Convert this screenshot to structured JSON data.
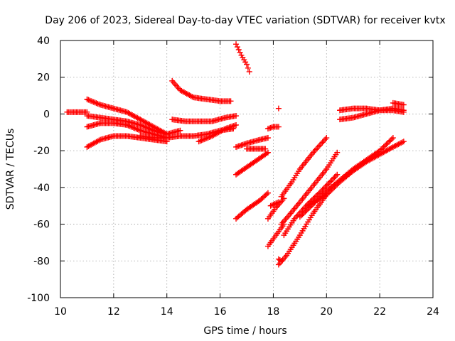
{
  "chart_data": {
    "type": "scatter",
    "title": "Day 206 of 2023, Sidereal Day-to-day VTEC variation (SDTVAR) for receiver kvtx",
    "xlabel": "GPS time / hours",
    "ylabel": "SDTVAR / TECUs",
    "xlim": [
      10,
      24
    ],
    "ylim": [
      -100,
      40
    ],
    "xticks": [
      "10",
      "12",
      "14",
      "16",
      "18",
      "20",
      "22",
      "24"
    ],
    "yticks": [
      "-100",
      "-80",
      "-60",
      "-40",
      "-20",
      "0",
      "20",
      "40"
    ],
    "grid": true,
    "marker": "plus",
    "color": "#ff0000",
    "series": [
      {
        "x": [
          10.25,
          10.6,
          11.0
        ],
        "y": [
          1,
          1,
          1
        ]
      },
      {
        "x": [
          11.0,
          11.5,
          12.0,
          12.5,
          13.0,
          13.5,
          14.0
        ],
        "y": [
          8,
          5,
          3,
          1,
          -3,
          -7,
          -11
        ]
      },
      {
        "x": [
          11.0,
          11.5,
          12.0,
          12.5,
          13.0,
          13.5,
          14.0,
          14.5
        ],
        "y": [
          -1,
          -2,
          -3,
          -4,
          -6,
          -9,
          -11,
          -9
        ]
      },
      {
        "x": [
          11.0,
          11.5,
          12.0,
          12.5,
          13.0,
          13.5,
          14.0
        ],
        "y": [
          -7,
          -5,
          -5,
          -6,
          -9,
          -11,
          -13
        ]
      },
      {
        "x": [
          11.0,
          11.5,
          12.0,
          12.5,
          13.0,
          13.5,
          14.0
        ],
        "y": [
          -18,
          -14,
          -12,
          -12,
          -13,
          -14,
          -15
        ]
      },
      {
        "x": [
          13.0,
          13.5,
          14.0,
          14.5,
          15.0,
          15.5,
          16.0,
          16.5
        ],
        "y": [
          -12,
          -13,
          -13,
          -12,
          -12,
          -11,
          -9,
          -8
        ]
      },
      {
        "x": [
          14.2,
          14.7,
          15.2,
          15.7,
          16.2,
          16.6
        ],
        "y": [
          -3,
          -4,
          -4,
          -4,
          -2,
          -1
        ]
      },
      {
        "x": [
          14.2,
          14.5,
          15.0,
          15.5,
          16.0,
          16.4
        ],
        "y": [
          18,
          13,
          9,
          8,
          7,
          7
        ]
      },
      {
        "x": [
          15.2,
          15.7,
          16.2,
          16.6
        ],
        "y": [
          -15,
          -12,
          -8,
          -6
        ]
      },
      {
        "x": [
          16.6,
          16.8,
          17.0,
          17.1
        ],
        "y": [
          38,
          32,
          27,
          23
        ]
      },
      {
        "x": [
          16.6,
          17.0,
          17.5,
          17.8
        ],
        "y": [
          -18,
          -16,
          -14,
          -13
        ]
      },
      {
        "x": [
          16.6,
          17.0,
          17.5,
          17.8
        ],
        "y": [
          -33,
          -29,
          -24,
          -21
        ]
      },
      {
        "x": [
          16.6,
          17.0,
          17.5,
          17.8
        ],
        "y": [
          -57,
          -52,
          -47,
          -43
        ]
      },
      {
        "x": [
          17.0,
          17.4,
          17.7
        ],
        "y": [
          -19,
          -19,
          -19
        ]
      },
      {
        "x": [
          17.8,
          18.0,
          18.2
        ],
        "y": [
          -8,
          -7,
          -7
        ]
      },
      {
        "x": [
          18.2
        ],
        "y": [
          3
        ]
      },
      {
        "x": [
          17.8,
          18.1,
          18.4
        ],
        "y": [
          -72,
          -66,
          -60
        ]
      },
      {
        "x": [
          17.8,
          18.1,
          18.4
        ],
        "y": [
          -57,
          -51,
          -46
        ]
      },
      {
        "x": [
          18.3,
          18.7,
          19.0,
          19.5,
          20.0
        ],
        "y": [
          -45,
          -37,
          -30,
          -21,
          -13
        ]
      },
      {
        "x": [
          18.3,
          18.6,
          19.0,
          19.5,
          20.0,
          20.4
        ],
        "y": [
          -60,
          -55,
          -48,
          -39,
          -30,
          -21
        ]
      },
      {
        "x": [
          18.2,
          18.5,
          19.0,
          19.5,
          20.0
        ],
        "y": [
          -82,
          -77,
          -66,
          -54,
          -44
        ]
      },
      {
        "x": [
          18.4,
          18.8,
          19.3,
          19.8,
          20.4
        ],
        "y": [
          -66,
          -57,
          -49,
          -42,
          -33
        ]
      },
      {
        "x": [
          19.0,
          19.5,
          20.0,
          20.5,
          21.0,
          21.5,
          22.0,
          22.5
        ],
        "y": [
          -56,
          -49,
          -42,
          -36,
          -30,
          -25,
          -20,
          -13
        ]
      },
      {
        "x": [
          19.3,
          20.0,
          20.5,
          21.0,
          21.5,
          22.0,
          22.5,
          22.9
        ],
        "y": [
          -50,
          -44,
          -37,
          -31,
          -26,
          -22,
          -18,
          -15
        ]
      },
      {
        "x": [
          20.5,
          21.0,
          21.5,
          22.0,
          22.5,
          22.9
        ],
        "y": [
          2,
          3,
          3,
          2,
          2,
          1
        ]
      },
      {
        "x": [
          20.5,
          21.0,
          21.5,
          22.0,
          22.5,
          22.9
        ],
        "y": [
          -3,
          -2,
          0,
          2,
          3,
          2
        ]
      },
      {
        "x": [
          22.5,
          22.9
        ],
        "y": [
          6,
          5
        ]
      },
      {
        "x": [
          18.2,
          18.3
        ],
        "y": [
          -79,
          -80
        ]
      },
      {
        "x": [
          17.9,
          18.2
        ],
        "y": [
          -50,
          -48
        ]
      }
    ]
  }
}
